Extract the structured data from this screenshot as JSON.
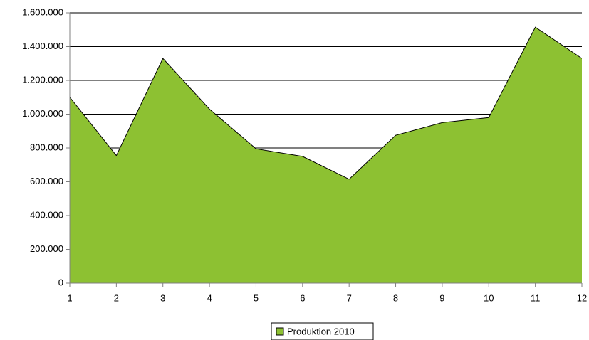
{
  "chart_data": {
    "type": "area",
    "x": [
      1,
      2,
      3,
      4,
      5,
      6,
      7,
      8,
      9,
      10,
      11,
      12
    ],
    "xlim": [
      1,
      12
    ],
    "xticks": [
      1,
      2,
      3,
      4,
      5,
      6,
      7,
      8,
      9,
      10,
      11,
      12
    ],
    "series": [
      {
        "name": "Produktion 2010",
        "color": "#8dc132",
        "values": [
          1100000,
          755000,
          1330000,
          1030000,
          795000,
          750000,
          615000,
          875000,
          950000,
          980000,
          1515000,
          1330000
        ]
      }
    ],
    "ylim": [
      0,
      1600000
    ],
    "yticks": [
      0,
      {
        "value": 200000,
        "label": "200.000"
      },
      {
        "value": 400000,
        "label": "400.000"
      },
      {
        "value": 600000,
        "label": "600.000"
      },
      {
        "value": 800000,
        "label": "800.000"
      },
      {
        "value": 1000000,
        "label": "1.000.000"
      },
      {
        "value": 1200000,
        "label": "1.200.000"
      },
      {
        "value": 1400000,
        "label": "1.400.000"
      },
      {
        "value": 1600000,
        "label": "1.600.000"
      }
    ],
    "grid": true,
    "legend": "bottom"
  }
}
